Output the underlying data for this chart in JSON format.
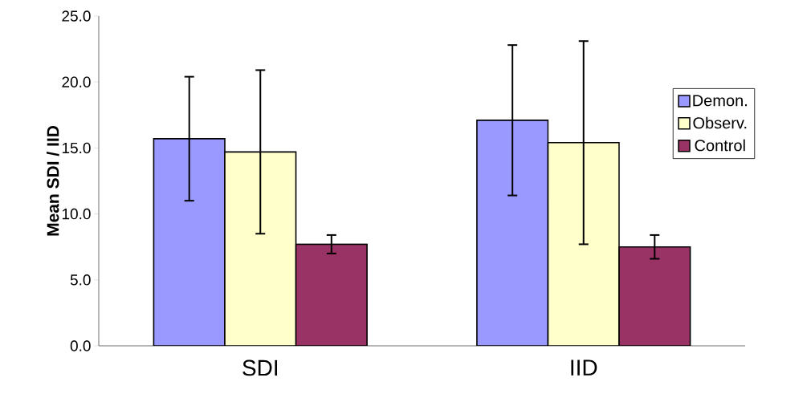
{
  "chart_data": {
    "type": "bar",
    "ylabel": "Mean SDI / IID",
    "categories": [
      "SDI",
      "IID"
    ],
    "series": [
      {
        "name": "Demon.",
        "color": "#9999ff",
        "values": [
          15.7,
          17.1
        ],
        "errors": [
          4.7,
          5.7
        ]
      },
      {
        "name": "Observ.",
        "color": "#ffffcc",
        "values": [
          14.7,
          15.4
        ],
        "errors": [
          6.2,
          7.7
        ]
      },
      {
        "name": "Control",
        "color": "#993366",
        "values": [
          7.7,
          7.5
        ],
        "errors": [
          0.7,
          0.9
        ]
      }
    ],
    "ylim": [
      0,
      25
    ],
    "yticks": [
      {
        "value": 0,
        "label": "0.0"
      },
      {
        "value": 5,
        "label": "5.0"
      },
      {
        "value": 10,
        "label": "10.0"
      },
      {
        "value": 15,
        "label": "15.0"
      },
      {
        "value": 20,
        "label": "20.0"
      },
      {
        "value": 25,
        "label": "25.0"
      }
    ],
    "grid": false,
    "legend": "right"
  }
}
